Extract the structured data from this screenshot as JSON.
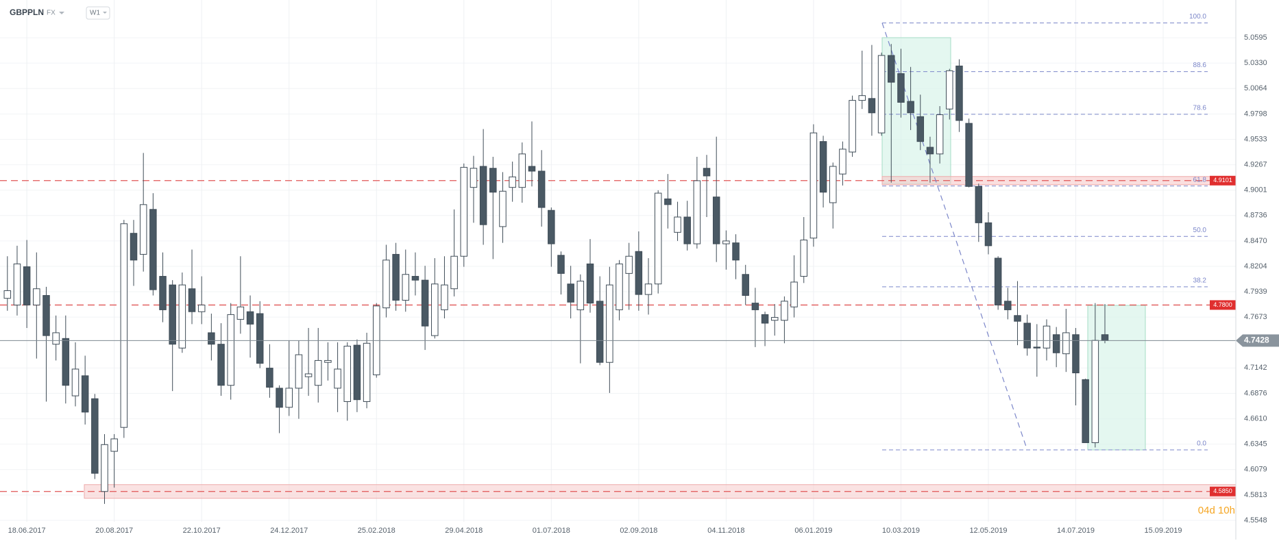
{
  "chart_data": {
    "type": "candlestick",
    "symbol": "GBPPLN",
    "market": "FX",
    "timeframe": "W1",
    "countdown": "04d 10h",
    "categories": [
      null,
      null,
      "18.06.2017",
      null,
      null,
      null,
      null,
      null,
      null,
      null,
      null,
      "20.08.2017",
      null,
      null,
      null,
      null,
      null,
      null,
      null,
      null,
      "22.10.2017",
      null,
      null,
      null,
      null,
      null,
      null,
      null,
      null,
      "24.12.2017",
      null,
      null,
      null,
      null,
      null,
      null,
      null,
      null,
      "25.02.2018",
      null,
      null,
      null,
      null,
      null,
      null,
      null,
      null,
      "29.04.2018",
      null,
      null,
      null,
      null,
      null,
      null,
      null,
      null,
      "01.07.2018",
      null,
      null,
      null,
      null,
      null,
      null,
      null,
      null,
      "02.09.2018",
      null,
      null,
      null,
      null,
      null,
      null,
      null,
      null,
      "04.11.2018",
      null,
      null,
      null,
      null,
      null,
      null,
      null,
      null,
      "06.01.2019",
      null,
      null,
      null,
      null,
      null,
      null,
      null,
      null,
      "10.03.2019",
      null,
      null,
      null,
      null,
      null,
      null,
      null,
      null,
      "12.05.2019",
      null,
      null,
      null,
      null,
      null,
      null,
      null,
      null,
      "14.07.2019",
      null,
      null,
      null,
      null,
      null,
      null,
      null,
      null,
      "15.09.2019"
    ],
    "open": [
      4.787,
      4.78,
      4.82,
      4.78,
      4.79,
      4.739,
      4.745,
      4.685,
      4.706,
      4.682,
      4.585,
      4.627,
      4.652,
      4.855,
      4.833,
      4.88,
      4.81,
      4.801,
      4.735,
      4.797,
      4.773,
      4.751,
      4.739,
      4.696,
      4.765,
      4.773,
      4.771,
      4.714,
      4.693,
      4.673,
      4.693,
      4.705,
      4.696,
      4.72,
      4.693,
      4.679,
      4.738,
      4.679,
      4.707,
      4.777,
      4.833,
      4.785,
      4.81,
      4.806,
      4.748,
      4.775,
      4.797,
      4.831,
      4.903,
      4.925,
      4.923,
      4.862,
      4.903,
      4.903,
      4.925,
      4.92,
      4.879,
      4.832,
      4.802,
      4.775,
      4.823,
      4.784,
      4.72,
      4.775,
      4.813,
      4.836,
      4.791,
      4.802,
      4.891,
      4.856,
      4.872,
      4.844,
      4.923,
      4.893,
      4.844,
      4.845,
      4.812,
      4.782,
      4.77,
      4.764,
      4.764,
      4.778,
      4.81,
      4.85,
      4.951,
      4.887,
      4.917,
      4.94,
      4.994,
      4.996,
      4.96,
      5.041,
      5.022,
      4.993,
      4.977,
      4.945,
      4.938,
      4.985,
      5.03,
      4.97,
      4.904,
      4.866,
      4.829,
      4.784,
      4.769,
      4.761,
      4.736,
      4.735,
      4.749,
      4.729,
      4.749,
      4.702,
      4.636,
      4.749,
      null,
      null,
      null,
      null,
      null,
      null
    ],
    "high": [
      4.831,
      4.842,
      4.848,
      4.835,
      4.799,
      4.769,
      4.769,
      4.741,
      4.727,
      4.687,
      4.645,
      4.645,
      4.869,
      4.869,
      4.939,
      4.897,
      4.835,
      4.806,
      4.814,
      4.838,
      4.81,
      4.771,
      4.761,
      4.782,
      4.831,
      4.79,
      4.784,
      4.739,
      4.696,
      4.743,
      4.743,
      4.756,
      4.756,
      4.741,
      4.741,
      4.741,
      4.744,
      4.751,
      4.782,
      4.843,
      4.845,
      4.838,
      4.835,
      4.821,
      4.829,
      4.831,
      4.88,
      4.928,
      4.936,
      4.964,
      4.935,
      4.919,
      4.93,
      4.95,
      4.972,
      4.942,
      4.882,
      4.836,
      4.821,
      4.812,
      4.849,
      4.81,
      4.82,
      4.827,
      4.845,
      4.857,
      4.829,
      4.9,
      4.917,
      4.888,
      4.889,
      4.935,
      4.937,
      4.956,
      4.858,
      4.854,
      4.822,
      4.798,
      4.773,
      4.781,
      4.789,
      4.832,
      4.872,
      4.969,
      4.957,
      4.929,
      4.951,
      4.999,
      5.046,
      5.052,
      5.044,
      5.053,
      5.048,
      5.029,
      5.0,
      4.956,
      4.988,
      5.027,
      5.037,
      4.975,
      4.907,
      4.877,
      4.831,
      4.798,
      4.805,
      4.77,
      4.76,
      4.765,
      4.757,
      4.776,
      4.756,
      4.703,
      4.782,
      4.781,
      null,
      null,
      null,
      null,
      null,
      null
    ],
    "low": [
      4.774,
      4.769,
      4.756,
      4.724,
      4.679,
      4.722,
      4.677,
      4.674,
      4.655,
      4.598,
      4.572,
      4.589,
      4.641,
      4.8,
      4.815,
      4.79,
      4.762,
      4.69,
      4.73,
      4.76,
      4.76,
      4.722,
      4.685,
      4.681,
      4.75,
      4.725,
      4.714,
      4.683,
      4.646,
      4.664,
      4.661,
      4.685,
      4.678,
      4.701,
      4.668,
      4.659,
      4.668,
      4.672,
      4.704,
      4.767,
      4.774,
      4.773,
      4.79,
      4.733,
      4.745,
      4.766,
      4.789,
      4.82,
      4.866,
      4.843,
      4.828,
      4.845,
      4.888,
      4.887,
      4.904,
      4.862,
      4.82,
      4.791,
      4.766,
      4.719,
      4.772,
      4.717,
      4.688,
      4.764,
      4.775,
      4.774,
      4.77,
      4.792,
      4.86,
      4.847,
      4.837,
      4.839,
      4.872,
      4.825,
      4.817,
      4.807,
      4.78,
      4.736,
      4.737,
      4.748,
      4.74,
      4.767,
      4.803,
      4.841,
      4.882,
      4.86,
      4.905,
      4.935,
      4.985,
      4.957,
      4.957,
      4.908,
      4.976,
      4.963,
      4.942,
      4.908,
      4.928,
      4.974,
      4.961,
      4.903,
      4.846,
      4.833,
      4.775,
      4.765,
      4.738,
      4.727,
      4.705,
      4.722,
      4.715,
      4.71,
      4.675,
      4.636,
      4.631,
      4.74,
      null,
      null,
      null,
      null,
      null,
      null
    ],
    "close": [
      4.795,
      4.823,
      4.78,
      4.797,
      4.748,
      4.751,
      4.696,
      4.713,
      4.668,
      4.604,
      4.634,
      4.64,
      4.865,
      4.827,
      4.885,
      4.796,
      4.775,
      4.739,
      4.801,
      4.773,
      4.78,
      4.739,
      4.696,
      4.77,
      4.778,
      4.76,
      4.719,
      4.694,
      4.673,
      4.693,
      4.728,
      4.708,
      4.722,
      4.722,
      4.713,
      4.737,
      4.681,
      4.74,
      4.779,
      4.827,
      4.785,
      4.812,
      4.806,
      4.758,
      4.802,
      4.801,
      4.831,
      4.924,
      4.923,
      4.864,
      4.898,
      4.899,
      4.914,
      4.938,
      4.92,
      4.882,
      4.844,
      4.813,
      4.783,
      4.805,
      4.782,
      4.72,
      4.801,
      4.823,
      4.831,
      4.791,
      4.802,
      4.897,
      4.885,
      4.872,
      4.844,
      4.91,
      4.915,
      4.844,
      4.847,
      4.827,
      4.79,
      4.775,
      4.761,
      4.767,
      4.784,
      4.804,
      4.848,
      4.96,
      4.898,
      4.925,
      4.943,
      4.994,
      4.999,
      4.981,
      5.041,
      5.013,
      4.992,
      4.981,
      4.951,
      4.938,
      4.979,
      5.025,
      4.973,
      4.904,
      4.866,
      4.842,
      4.78,
      4.775,
      4.763,
      4.735,
      4.735,
      4.758,
      4.73,
      4.751,
      4.709,
      4.636,
      4.743,
      4.7428,
      null,
      null,
      null,
      null,
      null,
      null
    ],
    "up_color": "#ffffff",
    "down_color": "#4a5964",
    "ylim": [
      4.549,
      5.099
    ],
    "yticks": [
      5.0595,
      {
        "value": 5.033,
        "label": "5.0330"
      },
      5.0064,
      4.9798,
      4.9533,
      4.9267,
      4.9001,
      4.8736,
      {
        "value": 4.847,
        "label": "4.8470"
      },
      4.8204,
      4.7939,
      4.7673,
      4.7142,
      4.6876,
      {
        "value": 4.661,
        "label": "4.6610"
      },
      4.6345,
      4.6079,
      4.5813,
      4.5548
    ],
    "grid": true,
    "last_price": 4.7428,
    "levels": [
      {
        "value": 4.9101,
        "label": "4.9101"
      },
      {
        "value": 4.78,
        "label": "4.7800"
      },
      {
        "value": 4.585,
        "label": "4.5850"
      }
    ],
    "fibonacci": {
      "high": 5.075,
      "low": 4.6285,
      "color": "#7b86c9",
      "levels": [
        {
          "value": 100,
          "label": "100.0"
        },
        88.6,
        78.6,
        61.8,
        {
          "value": 50,
          "label": "50.0"
        },
        38.2,
        {
          "value": 0,
          "label": "0.0"
        }
      ]
    }
  }
}
